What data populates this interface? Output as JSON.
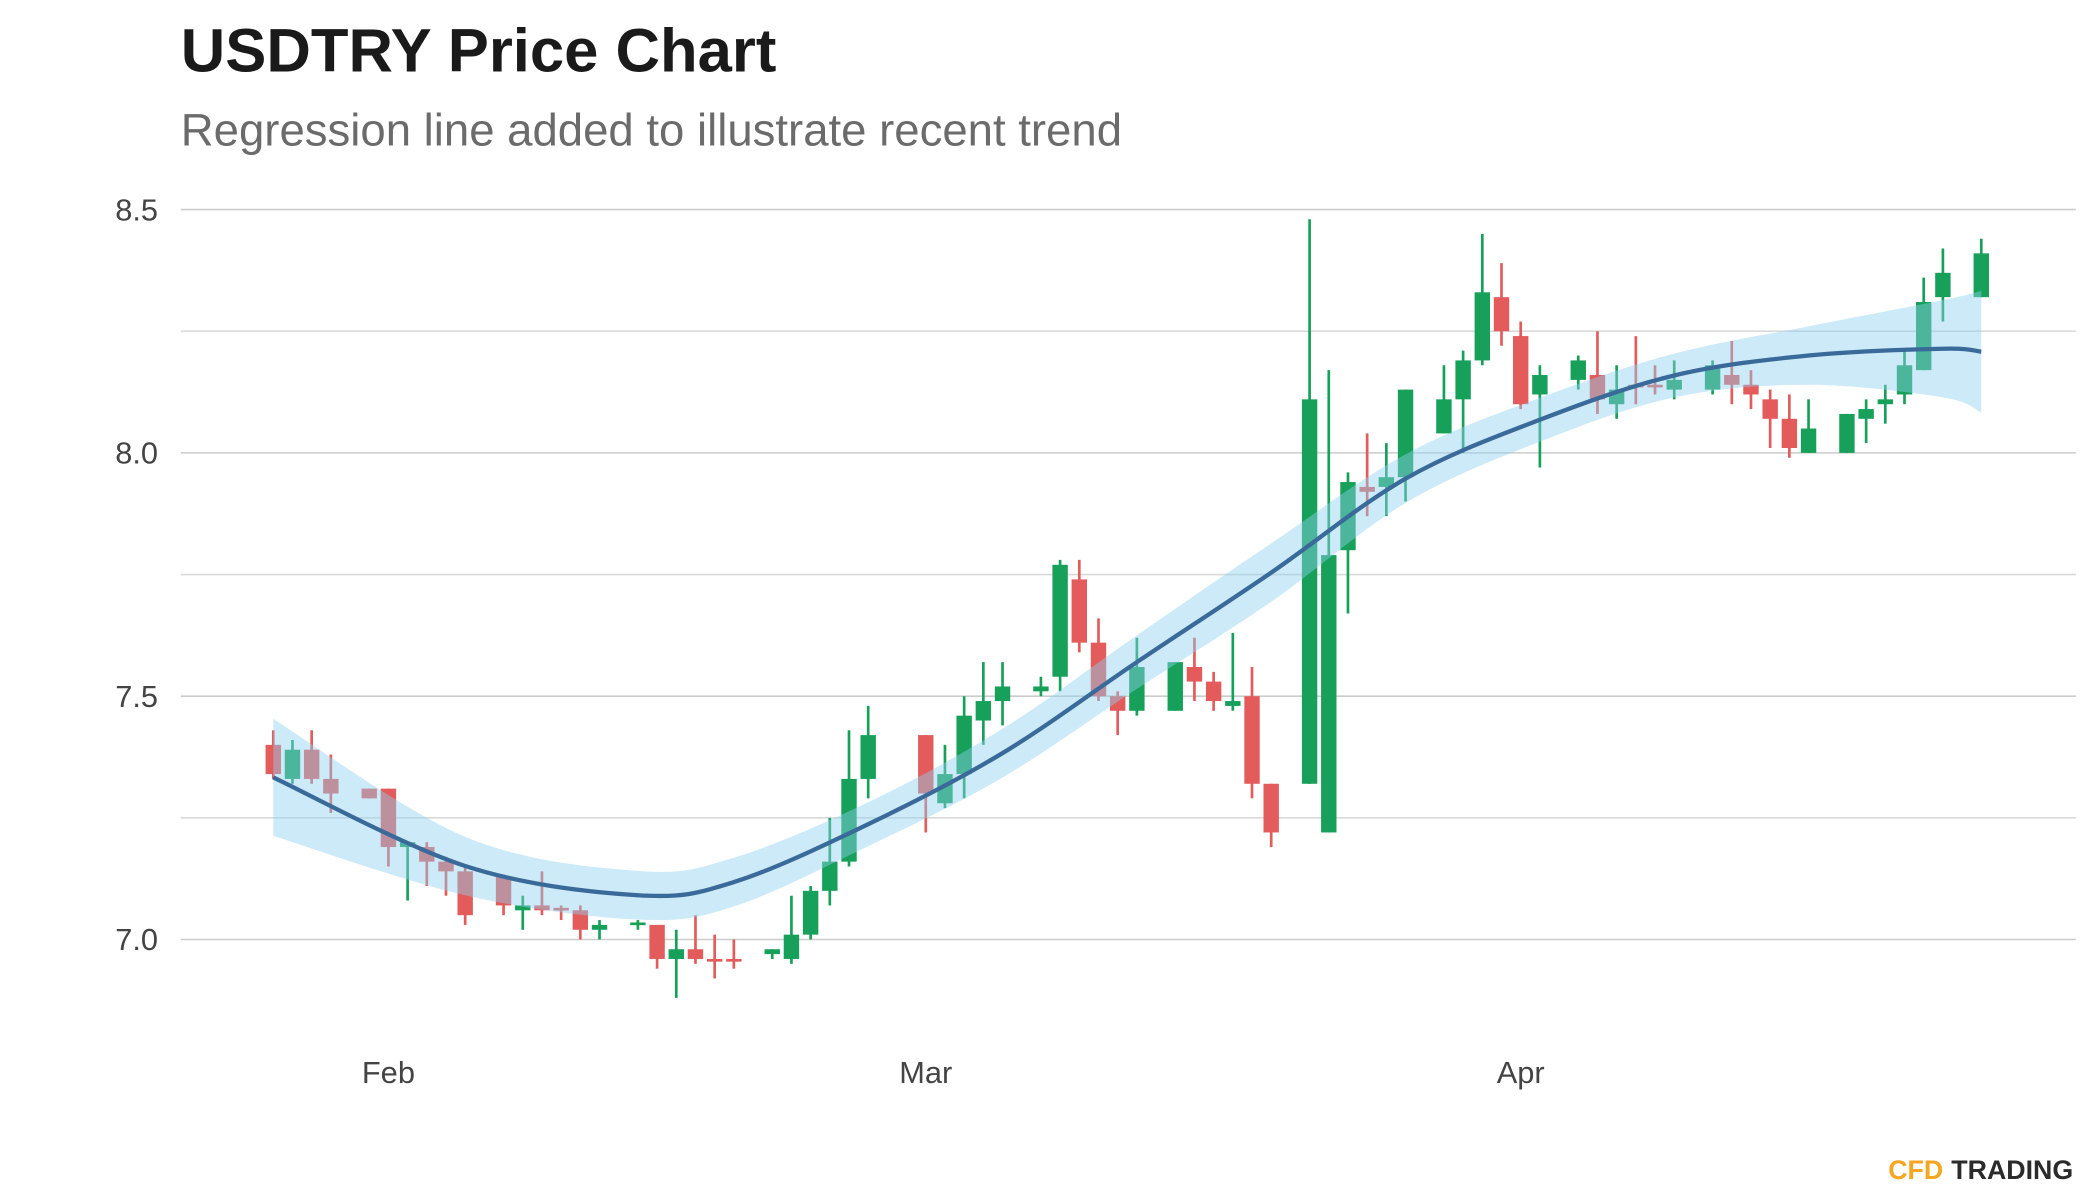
{
  "chart_data": {
    "type": "candlestick",
    "title": "USDTRY Price Chart",
    "subtitle": "Regression line added to illustrate recent trend",
    "brand": [
      "CFD",
      "TRADING"
    ],
    "up_color": "#16a05a",
    "down_color": "#e35b5b",
    "band_color": "#8fd0f0",
    "line_color": "#3a6a9a",
    "grid": true,
    "xlim": [
      21,
      120
    ],
    "xticks": [
      {
        "value": 32,
        "label": "Feb"
      },
      {
        "value": 60,
        "label": "Mar"
      },
      {
        "value": 91,
        "label": "Apr"
      }
    ],
    "ylim": [
      6.85,
      8.52
    ],
    "yticks": [
      {
        "value": 7,
        "label": "7.0"
      },
      7.5,
      {
        "value": 8,
        "label": "8.0"
      },
      8.5
    ],
    "yminor": [
      7.25,
      7.75,
      8.25
    ],
    "x": [
      26,
      27,
      28,
      29,
      31,
      32,
      33,
      34,
      35,
      36,
      38,
      39,
      40,
      41,
      42,
      43,
      45,
      46,
      47,
      48,
      49,
      50,
      52,
      53,
      54,
      55,
      56,
      57,
      60,
      61,
      62,
      63,
      64,
      66,
      67,
      68,
      69,
      70,
      71,
      73,
      74,
      75,
      76,
      77,
      78,
      80,
      81,
      82,
      83,
      84,
      85,
      87,
      88,
      89,
      90,
      91,
      92,
      94,
      95,
      96,
      97,
      98,
      99,
      101,
      102,
      103,
      104,
      105,
      106,
      108,
      109,
      110,
      111,
      112,
      113,
      115
    ],
    "open": [
      7.4,
      7.33,
      7.39,
      7.33,
      7.31,
      7.31,
      7.19,
      7.19,
      7.16,
      7.14,
      7.13,
      7.06,
      7.07,
      7.065,
      7.06,
      7.02,
      7.03,
      7.03,
      6.96,
      6.98,
      6.96,
      6.96,
      6.97,
      6.96,
      7.01,
      7.1,
      7.16,
      7.33,
      7.42,
      7.28,
      7.34,
      7.45,
      7.49,
      7.51,
      7.54,
      7.74,
      7.61,
      7.5,
      7.47,
      7.47,
      7.56,
      7.53,
      7.48,
      7.5,
      7.32,
      7.32,
      7.22,
      7.8,
      7.93,
      7.93,
      7.95,
      8.04,
      8.11,
      8.19,
      8.32,
      8.24,
      8.12,
      8.15,
      8.16,
      8.1,
      8.14,
      8.14,
      8.13,
      8.13,
      8.16,
      8.14,
      8.11,
      8.07,
      8.0,
      8.0,
      8.07,
      8.1,
      8.12,
      8.17,
      8.32,
      8.32
    ],
    "close": [
      7.34,
      7.39,
      7.33,
      7.3,
      7.29,
      7.19,
      7.2,
      7.16,
      7.14,
      7.05,
      7.07,
      7.07,
      7.06,
      7.06,
      7.02,
      7.03,
      7.035,
      6.96,
      6.98,
      6.96,
      6.955,
      6.955,
      6.98,
      7.01,
      7.1,
      7.16,
      7.33,
      7.42,
      7.3,
      7.34,
      7.46,
      7.49,
      7.52,
      7.52,
      7.77,
      7.61,
      7.5,
      7.47,
      7.56,
      7.57,
      7.53,
      7.49,
      7.49,
      7.32,
      7.22,
      8.11,
      7.79,
      7.94,
      7.92,
      7.95,
      8.13,
      8.11,
      8.19,
      8.33,
      8.25,
      8.1,
      8.16,
      8.19,
      8.11,
      8.13,
      8.135,
      8.135,
      8.15,
      8.18,
      8.14,
      8.12,
      8.07,
      8.01,
      8.05,
      8.08,
      8.09,
      8.11,
      8.18,
      8.31,
      8.37,
      8.41
    ],
    "high": [
      7.43,
      7.41,
      7.43,
      7.38,
      7.31,
      7.31,
      7.2,
      7.2,
      7.17,
      7.15,
      7.13,
      7.09,
      7.14,
      7.07,
      7.07,
      7.04,
      7.04,
      7.03,
      7.02,
      7.05,
      7.01,
      7.0,
      6.98,
      7.09,
      7.11,
      7.25,
      7.43,
      7.48,
      7.42,
      7.4,
      7.5,
      7.57,
      7.57,
      7.54,
      7.78,
      7.78,
      7.66,
      7.51,
      7.62,
      7.57,
      7.62,
      7.55,
      7.63,
      7.56,
      7.32,
      8.48,
      8.17,
      7.96,
      8.04,
      8.02,
      8.13,
      8.18,
      8.21,
      8.45,
      8.39,
      8.27,
      8.18,
      8.2,
      8.25,
      8.18,
      8.24,
      8.18,
      8.19,
      8.19,
      8.23,
      8.17,
      8.13,
      8.12,
      8.11,
      8.08,
      8.11,
      8.14,
      8.21,
      8.36,
      8.42,
      8.44
    ],
    "low": [
      7.33,
      7.32,
      7.32,
      7.26,
      7.29,
      7.15,
      7.08,
      7.11,
      7.09,
      7.03,
      7.05,
      7.02,
      7.05,
      7.04,
      7.0,
      7.0,
      7.02,
      6.94,
      6.88,
      6.95,
      6.92,
      6.94,
      6.96,
      6.95,
      7.0,
      7.07,
      7.15,
      7.29,
      7.22,
      7.27,
      7.29,
      7.4,
      7.44,
      7.5,
      7.51,
      7.59,
      7.49,
      7.42,
      7.46,
      7.47,
      7.49,
      7.47,
      7.47,
      7.29,
      7.19,
      7.32,
      7.22,
      7.67,
      7.87,
      7.87,
      7.9,
      8.04,
      8.0,
      8.18,
      8.22,
      8.09,
      7.97,
      8.13,
      8.08,
      8.07,
      8.1,
      8.12,
      8.11,
      8.12,
      8.1,
      8.09,
      8.01,
      7.99,
      8.0,
      8.0,
      8.02,
      8.06,
      8.1,
      8.17,
      8.27,
      8.32
    ],
    "regression": {
      "x": [
        26,
        36,
        45,
        50,
        57,
        64,
        71,
        78,
        85,
        92,
        99,
        106,
        113,
        115
      ],
      "values": [
        7.333,
        7.151,
        7.091,
        7.118,
        7.237,
        7.383,
        7.57,
        7.754,
        7.947,
        8.068,
        8.159,
        8.2,
        8.214,
        8.208
      ],
      "lower": [
        7.213,
        7.091,
        7.041,
        7.068,
        7.192,
        7.333,
        7.515,
        7.694,
        7.897,
        8.023,
        8.114,
        8.14,
        8.114,
        8.083
      ],
      "upper": [
        7.453,
        7.211,
        7.141,
        7.168,
        7.282,
        7.433,
        7.625,
        7.814,
        7.997,
        8.113,
        8.204,
        8.26,
        8.314,
        8.333
      ]
    }
  }
}
